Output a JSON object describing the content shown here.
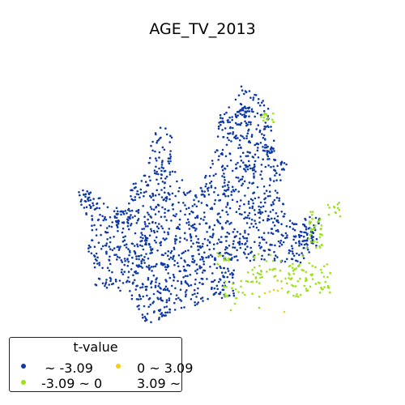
{
  "title": "AGE_TV_2013",
  "colors": {
    "class1": "#0f3aa6",
    "class2": "#9be21a",
    "class3": "#f2cf12",
    "class4": "#ffffff"
  },
  "legend": {
    "title": "t-value",
    "items": [
      {
        "label": "~ -3.09",
        "color": "#0f3aa6"
      },
      {
        "label": "-3.09 ~ 0",
        "color": "#9be21a"
      },
      {
        "label": "0 ~ 3.09",
        "color": "#f2cf12"
      },
      {
        "label": "3.09 ~",
        "color": "#ffffff"
      }
    ]
  }
}
